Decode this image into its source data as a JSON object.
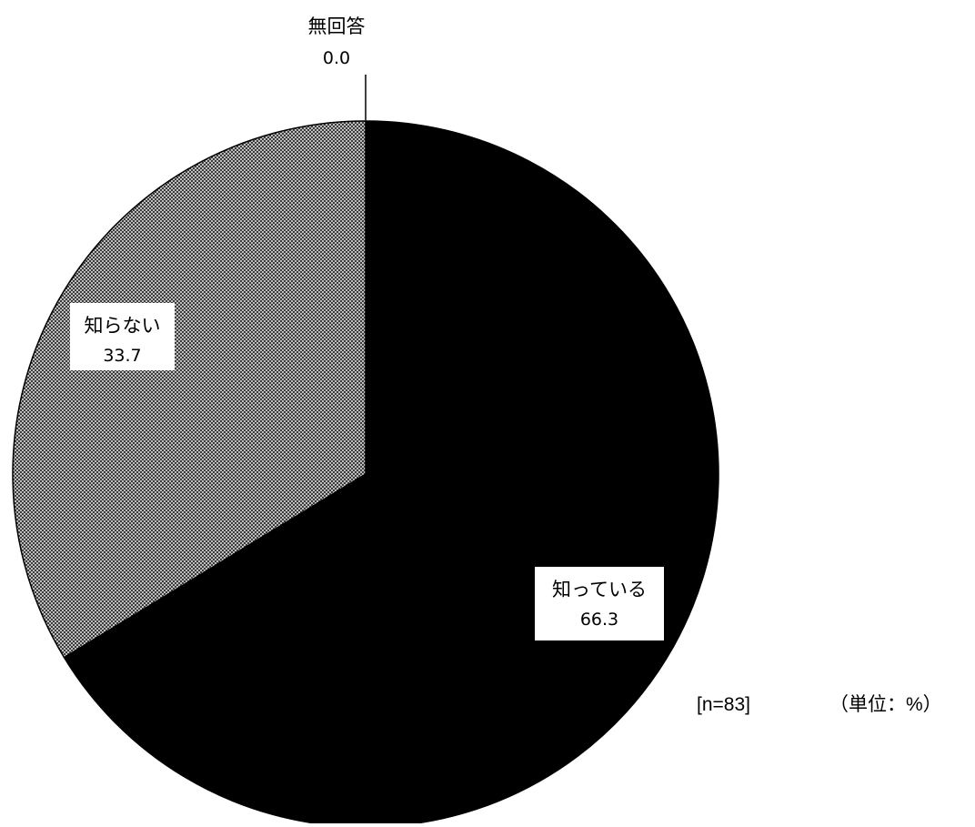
{
  "chart_data": {
    "type": "pie",
    "slices": [
      {
        "label": "知っている",
        "value": 66.3,
        "value_text": "66.3",
        "color": "#000000",
        "pattern": "solid"
      },
      {
        "label": "知らない",
        "value": 33.7,
        "value_text": "33.7",
        "color": "#8c8c8c",
        "pattern": "checker"
      },
      {
        "label": "無回答",
        "value": 0.0,
        "value_text": "0.0",
        "color": "#ffffff",
        "pattern": "none"
      }
    ],
    "start_angle": "12 o'clock",
    "direction": "clockwise",
    "title": "",
    "legend": "none",
    "sample_size": "[n=83]",
    "unit_note": "（単位：%）"
  }
}
